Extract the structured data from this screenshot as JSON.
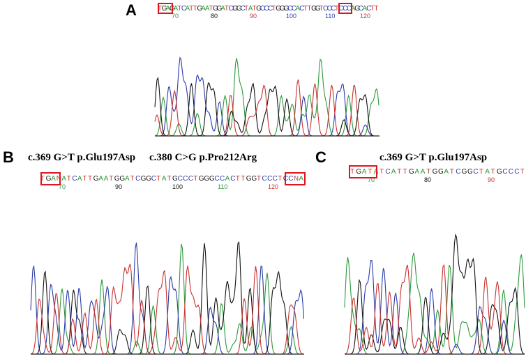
{
  "panels": {
    "a": {
      "letter": "A",
      "sequence": "TGAGATCATTGAATGGATCGGCTATGCCCTGGGCCACTTGGTCCCTCCCAGCACTT",
      "positions": [
        "70",
        "80",
        "90",
        "100",
        "110",
        "120"
      ]
    },
    "b": {
      "letter": "B",
      "mutation_1": "c.369 G>T p.Glu197Asp",
      "mutation_2": "c.380 C>G p.Pro212Arg",
      "sequence": "TGANATCATTGAATGGATCGGCTATGCCCTGGGCCACTTGGTCCCTCCNA",
      "positions": [
        "70",
        "90",
        "100",
        "110",
        "120"
      ]
    },
    "c": {
      "letter": "C",
      "mutation_1": "c.369 G>T p.Glu197Asp",
      "sequence": "TGATATCATTGAATGGATCGGCTATGCCCT",
      "positions": [
        "70",
        "80",
        "90"
      ]
    }
  },
  "base_colors": {
    "A": "#2a9a3a",
    "C": "#2a3aa8",
    "G": "#111111",
    "T": "#c8322e",
    "N": "#b04040"
  },
  "highlight_color": "#e0141c"
}
